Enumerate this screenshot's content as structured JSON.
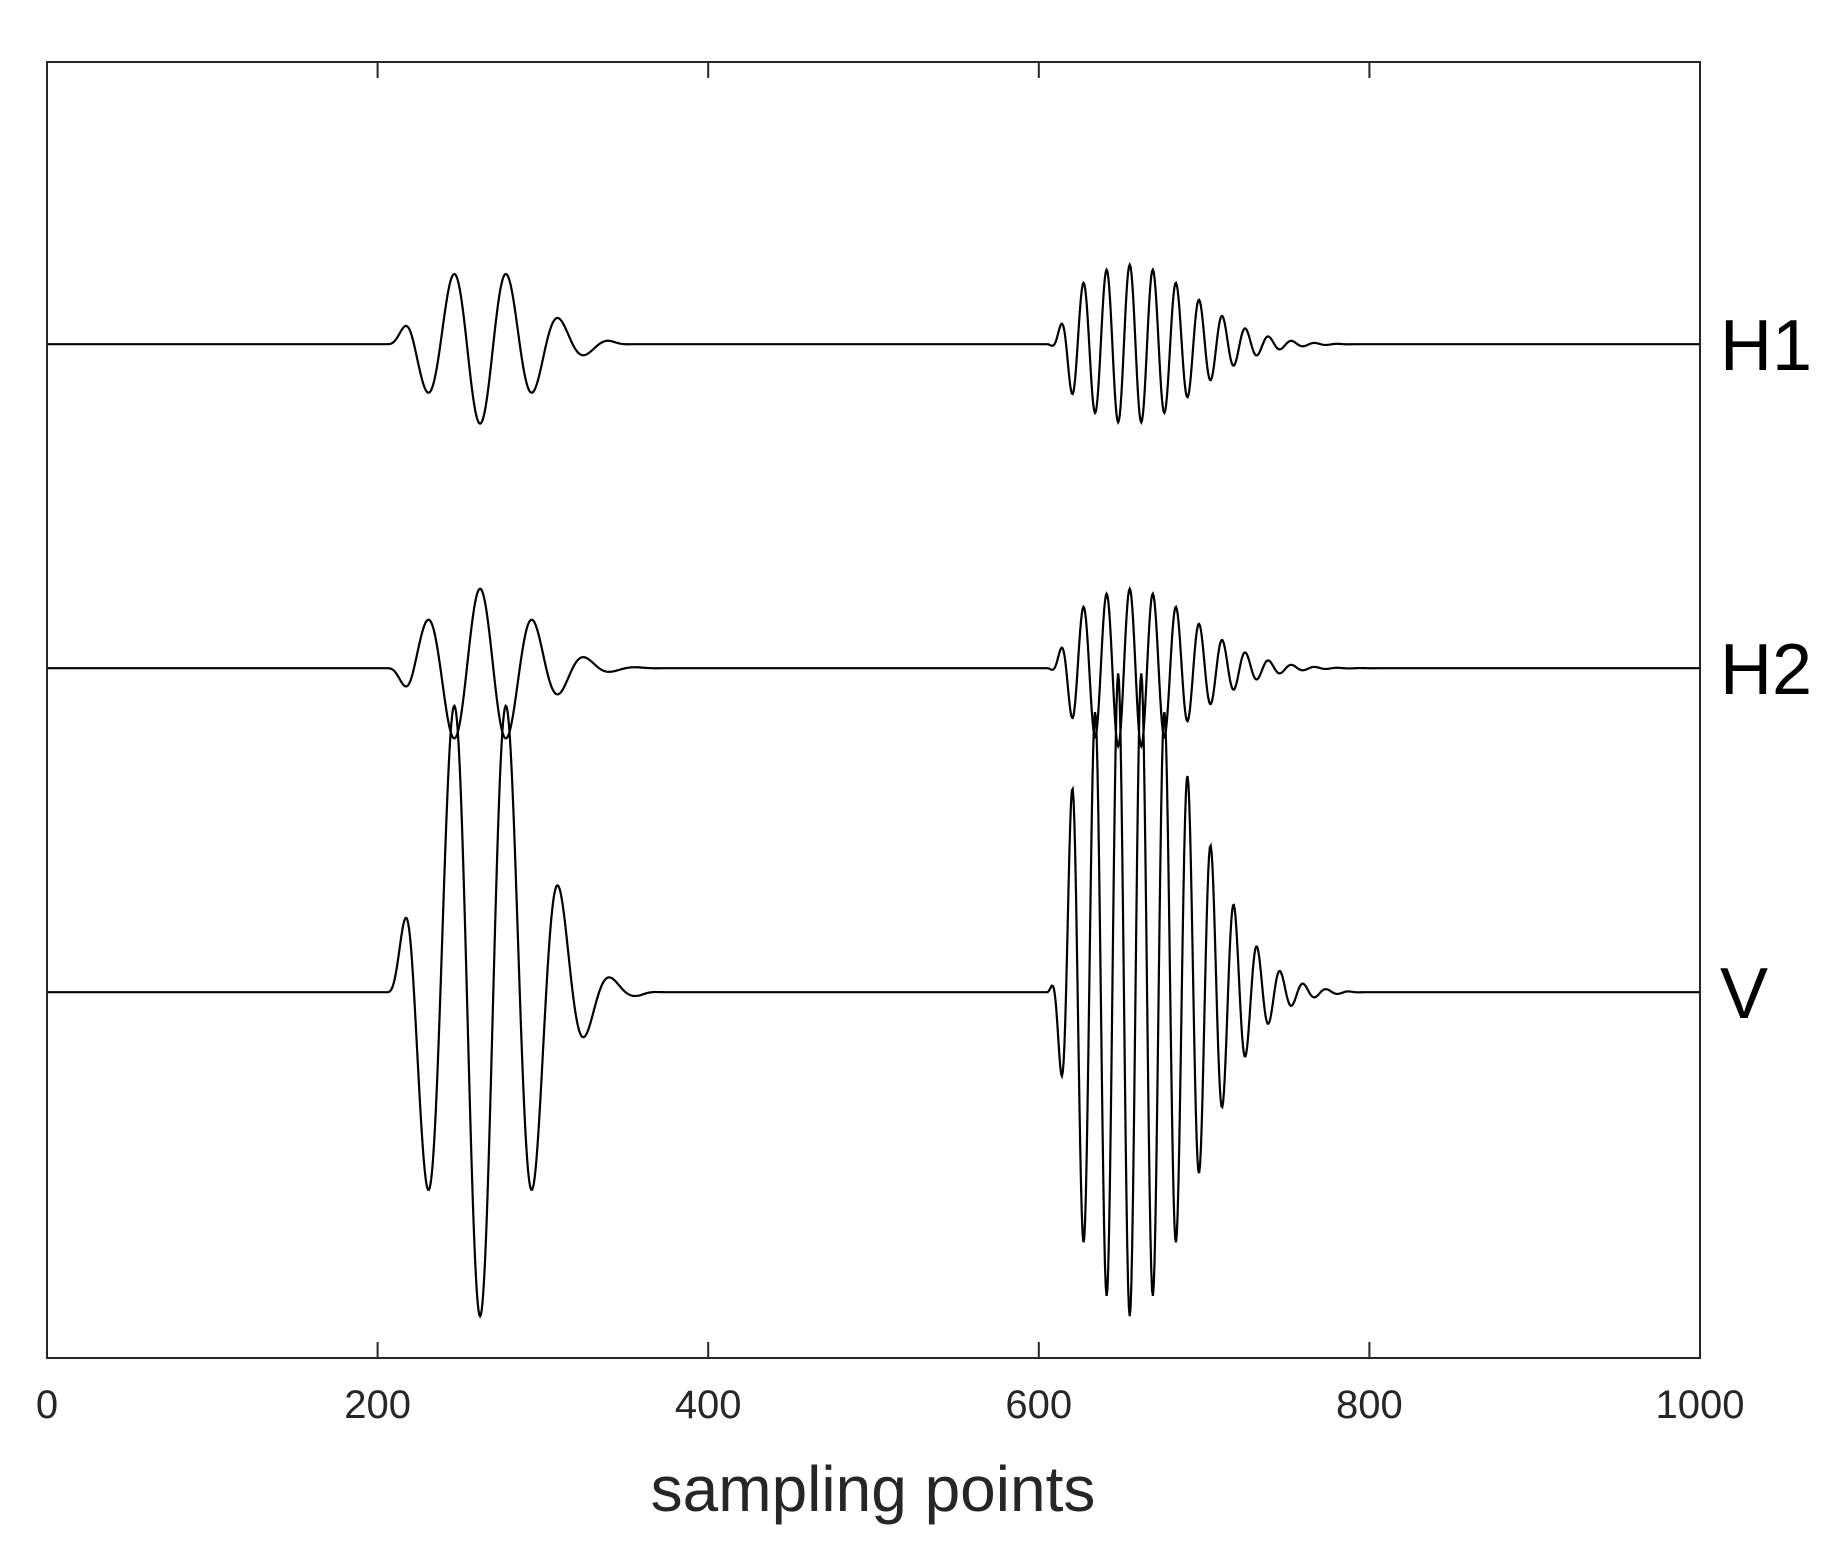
{
  "chart_data": {
    "type": "line",
    "xlabel": "sampling points",
    "ylabel": "",
    "title": "",
    "xlim": [
      0,
      1000
    ],
    "x_ticks": [
      0,
      200,
      400,
      600,
      800,
      1000
    ],
    "x_tick_labels": [
      "0",
      "200",
      "400",
      "600",
      "800",
      "1000"
    ],
    "y_ticks_shown": false,
    "grid": false,
    "ylim": [
      -3.3,
      2.9
    ],
    "line_color": "#000000",
    "series": [
      {
        "name": "H1",
        "baseline": 1.55,
        "wavelets": [
          {
            "center": 262,
            "amplitude": -0.38,
            "period": 32,
            "width": 45,
            "onset": 205,
            "offset": 355
          },
          {
            "center": 655,
            "amplitude": 0.38,
            "period": 14,
            "width": 55,
            "onset": 605,
            "offset": 795
          }
        ]
      },
      {
        "name": "H2",
        "baseline": 0.0,
        "wavelets": [
          {
            "center": 262,
            "amplitude": 0.38,
            "period": 32,
            "width": 45,
            "onset": 205,
            "offset": 375
          },
          {
            "center": 655,
            "amplitude": 0.38,
            "period": 14,
            "width": 55,
            "onset": 605,
            "offset": 815
          }
        ]
      },
      {
        "name": "V",
        "baseline": -1.55,
        "wavelets": [
          {
            "center": 262,
            "amplitude": -1.55,
            "period": 32,
            "width": 45,
            "onset": 205,
            "offset": 375
          },
          {
            "center": 655,
            "amplitude": -1.55,
            "period": 14,
            "width": 55,
            "onset": 605,
            "offset": 800
          }
        ]
      }
    ]
  }
}
